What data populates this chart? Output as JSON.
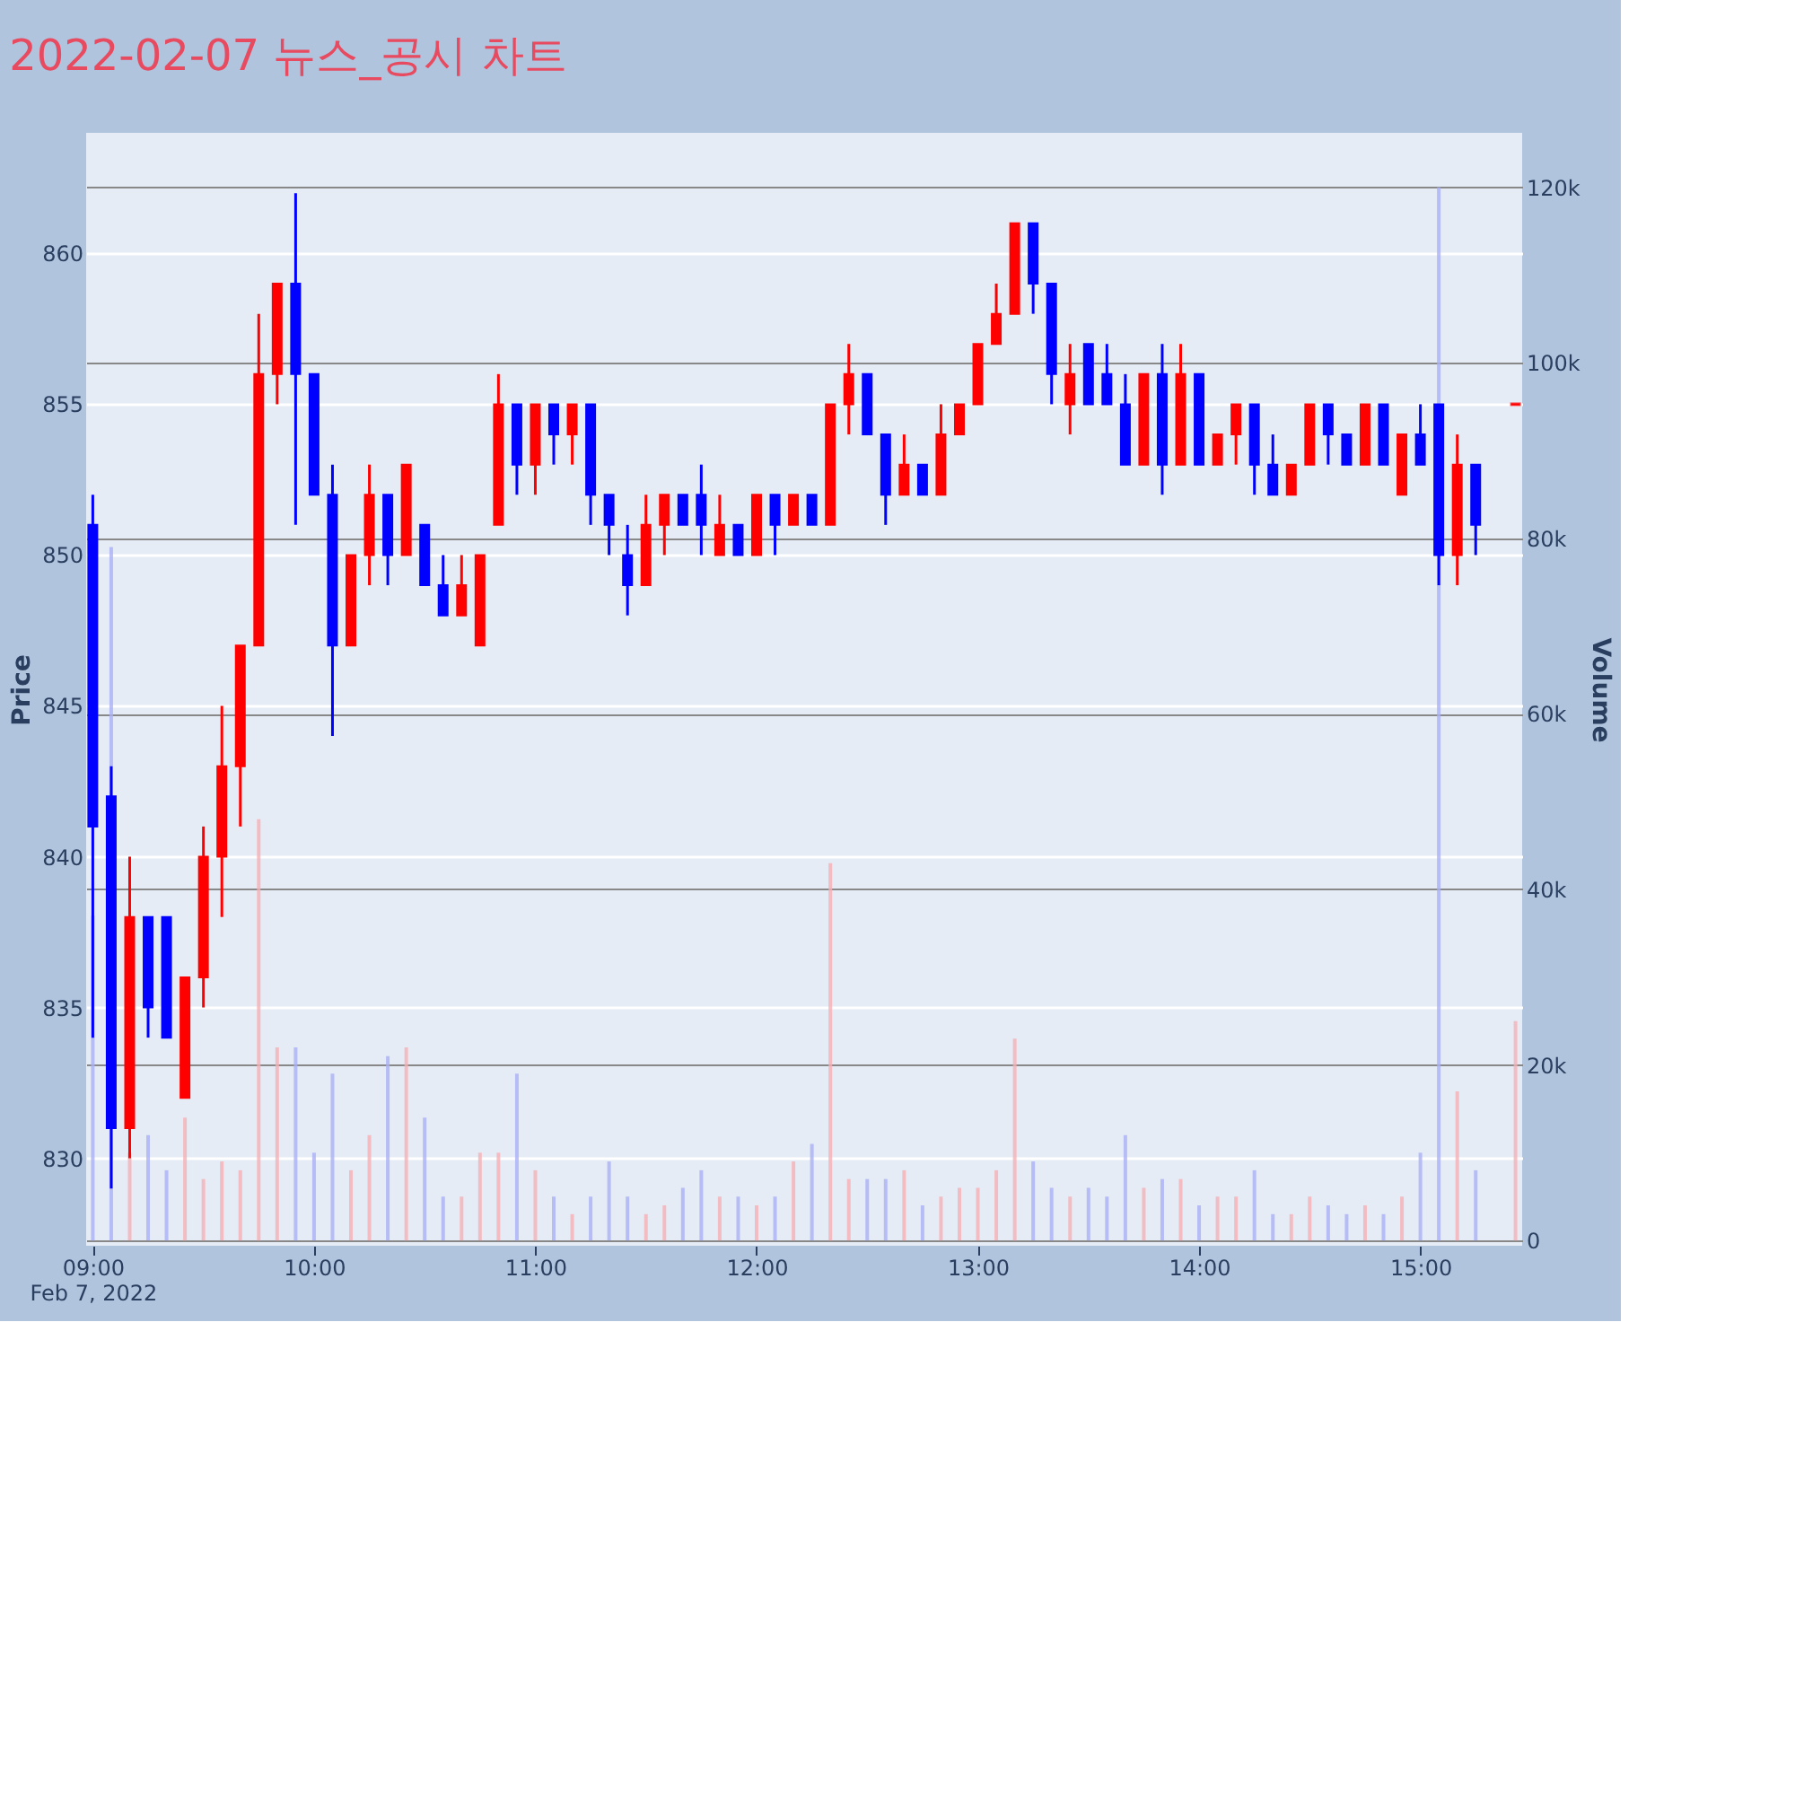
{
  "chart_data": {
    "type": "candlestick",
    "title": "2022-02-07 뉴스_공시 차트",
    "ylabel": "Price",
    "y2label": "Volume",
    "x": [
      9,
      9.0833,
      9.1667,
      9.25,
      9.3333,
      9.4167,
      9.5,
      9.5833,
      9.6667,
      9.75,
      9.8333,
      9.9167,
      10,
      10.0833,
      10.1667,
      10.25,
      10.3333,
      10.4167,
      10.5,
      10.5833,
      10.6667,
      10.75,
      10.8333,
      10.9167,
      11,
      11.0833,
      11.1667,
      11.25,
      11.3333,
      11.4167,
      11.5,
      11.5833,
      11.6667,
      11.75,
      11.8333,
      11.9167,
      12,
      12.0833,
      12.1667,
      12.25,
      12.3333,
      12.4167,
      12.5,
      12.5833,
      12.6667,
      12.75,
      12.8333,
      12.9167,
      13,
      13.0833,
      13.1667,
      13.25,
      13.3333,
      13.4167,
      13.5,
      13.5833,
      13.6667,
      13.75,
      13.8333,
      13.9167,
      14,
      14.0833,
      14.1667,
      14.25,
      14.3333,
      14.4167,
      14.5,
      14.5833,
      14.6667,
      14.75,
      14.8333,
      14.9167,
      15,
      15.0833,
      15.1667,
      15.25,
      15.43
    ],
    "xlim": [
      8.97,
      15.46
    ],
    "xticks": [
      {
        "value": 9,
        "label": "09:00\nFeb 7, 2022"
      },
      {
        "value": 10,
        "label": "10:00"
      },
      {
        "value": 11,
        "label": "11:00"
      },
      {
        "value": 12,
        "label": "12:00"
      },
      {
        "value": 13,
        "label": "13:00"
      },
      {
        "value": 14,
        "label": "14:00"
      },
      {
        "value": 15,
        "label": "15:00"
      }
    ],
    "ylim": [
      827.1,
      864
    ],
    "yticks": [
      830,
      835,
      840,
      845,
      850,
      855,
      860
    ],
    "y2lim": [
      -600,
      126200
    ],
    "y2ticks": [
      {
        "value": 0,
        "label": "0"
      },
      {
        "value": 20000,
        "label": "20k"
      },
      {
        "value": 40000,
        "label": "40k"
      },
      {
        "value": 60000,
        "label": "60k"
      },
      {
        "value": 80000,
        "label": "80k"
      },
      {
        "value": 100000,
        "label": "100k"
      },
      {
        "value": 120000,
        "label": "120k"
      }
    ],
    "grid": "y",
    "series": [
      {
        "ohlc": [
          [
            851,
            852,
            834,
            841
          ],
          [
            842,
            843,
            829,
            831
          ],
          [
            831,
            840,
            830,
            838
          ],
          [
            838,
            838,
            834,
            835
          ],
          [
            838,
            838,
            834,
            834
          ],
          [
            832,
            836,
            832,
            836
          ],
          [
            836,
            841,
            835,
            840
          ],
          [
            840,
            845,
            838,
            843
          ],
          [
            843,
            847,
            841,
            847
          ],
          [
            847,
            858,
            847,
            856
          ],
          [
            856,
            859,
            855,
            859
          ],
          [
            859,
            862,
            851,
            856
          ],
          [
            856,
            856,
            852,
            852
          ],
          [
            852,
            853,
            844,
            847
          ],
          [
            847,
            850,
            847,
            850
          ],
          [
            850,
            853,
            849,
            852
          ],
          [
            852,
            852,
            849,
            850
          ],
          [
            850,
            853,
            850,
            853
          ],
          [
            851,
            851,
            849,
            849
          ],
          [
            849,
            850,
            848,
            848
          ],
          [
            848,
            850,
            848,
            849
          ],
          [
            847,
            850,
            847,
            850
          ],
          [
            851,
            856,
            851,
            855
          ],
          [
            855,
            855,
            852,
            853
          ],
          [
            853,
            855,
            852,
            855
          ],
          [
            855,
            855,
            853,
            854
          ],
          [
            854,
            855,
            853,
            855
          ],
          [
            855,
            855,
            851,
            852
          ],
          [
            852,
            852,
            850,
            851
          ],
          [
            850,
            851,
            848,
            849
          ],
          [
            849,
            852,
            849,
            851
          ],
          [
            851,
            852,
            850,
            852
          ],
          [
            852,
            852,
            851,
            851
          ],
          [
            852,
            853,
            850,
            851
          ],
          [
            850,
            852,
            850,
            851
          ],
          [
            851,
            851,
            850,
            850
          ],
          [
            850,
            852,
            850,
            852
          ],
          [
            852,
            852,
            850,
            851
          ],
          [
            851,
            852,
            851,
            852
          ],
          [
            852,
            852,
            851,
            851
          ],
          [
            851,
            855,
            851,
            855
          ],
          [
            855,
            857,
            854,
            856
          ],
          [
            856,
            856,
            854,
            854
          ],
          [
            854,
            854,
            851,
            852
          ],
          [
            852,
            854,
            852,
            853
          ],
          [
            853,
            853,
            852,
            852
          ],
          [
            852,
            855,
            852,
            854
          ],
          [
            854,
            855,
            854,
            855
          ],
          [
            855,
            857,
            855,
            857
          ],
          [
            857,
            859,
            857,
            858
          ],
          [
            858,
            861,
            858,
            861
          ],
          [
            861,
            861,
            858,
            859
          ],
          [
            859,
            859,
            855,
            856
          ],
          [
            855,
            857,
            854,
            856
          ],
          [
            857,
            857,
            855,
            855
          ],
          [
            856,
            857,
            855,
            855
          ],
          [
            855,
            856,
            853,
            853
          ],
          [
            853,
            856,
            853,
            856
          ],
          [
            856,
            857,
            852,
            853
          ],
          [
            853,
            857,
            853,
            856
          ],
          [
            856,
            856,
            853,
            853
          ],
          [
            853,
            854,
            853,
            854
          ],
          [
            854,
            855,
            853,
            855
          ],
          [
            855,
            855,
            852,
            853
          ],
          [
            853,
            854,
            852,
            852
          ],
          [
            852,
            853,
            852,
            853
          ],
          [
            853,
            855,
            853,
            855
          ],
          [
            855,
            855,
            853,
            854
          ],
          [
            854,
            854,
            853,
            853
          ],
          [
            853,
            855,
            853,
            855
          ],
          [
            855,
            855,
            853,
            853
          ],
          [
            852,
            854,
            852,
            854
          ],
          [
            854,
            855,
            853,
            853
          ],
          [
            855,
            855,
            849,
            850
          ],
          [
            850,
            854,
            849,
            853
          ],
          [
            853,
            853,
            850,
            851
          ],
          [
            855,
            855,
            855,
            855
          ]
        ],
        "colors": [
          "#0000ff",
          "#0000ff",
          "#ff0000",
          "#0000ff",
          "#0000ff",
          "#ff0000",
          "#ff0000",
          "#ff0000",
          "#ff0000",
          "#ff0000",
          "#ff0000",
          "#0000ff",
          "#0000ff",
          "#0000ff",
          "#ff0000",
          "#ff0000",
          "#0000ff",
          "#ff0000",
          "#0000ff",
          "#0000ff",
          "#ff0000",
          "#ff0000",
          "#ff0000",
          "#0000ff",
          "#ff0000",
          "#0000ff",
          "#ff0000",
          "#0000ff",
          "#0000ff",
          "#0000ff",
          "#ff0000",
          "#ff0000",
          "#0000ff",
          "#0000ff",
          "#ff0000",
          "#0000ff",
          "#ff0000",
          "#0000ff",
          "#ff0000",
          "#0000ff",
          "#ff0000",
          "#ff0000",
          "#0000ff",
          "#0000ff",
          "#ff0000",
          "#0000ff",
          "#ff0000",
          "#ff0000",
          "#ff0000",
          "#ff0000",
          "#ff0000",
          "#0000ff",
          "#0000ff",
          "#ff0000",
          "#0000ff",
          "#0000ff",
          "#0000ff",
          "#ff0000",
          "#0000ff",
          "#ff0000",
          "#0000ff",
          "#ff0000",
          "#ff0000",
          "#0000ff",
          "#0000ff",
          "#ff0000",
          "#ff0000",
          "#0000ff",
          "#0000ff",
          "#ff0000",
          "#0000ff",
          "#ff0000",
          "#0000ff",
          "#0000ff",
          "#ff0000",
          "#0000ff",
          "#ff0000"
        ]
      },
      {
        "type": "bar",
        "axis": "y2",
        "values": [
          37000,
          79000,
          10000,
          12000,
          8000,
          14000,
          7000,
          9000,
          8000,
          48000,
          22000,
          22000,
          10000,
          19000,
          8000,
          12000,
          21000,
          22000,
          14000,
          5000,
          5000,
          10000,
          10000,
          19000,
          8000,
          5000,
          3000,
          5000,
          9000,
          5000,
          3000,
          4000,
          6000,
          8000,
          5000,
          5000,
          4000,
          5000,
          9000,
          11000,
          43000,
          7000,
          7000,
          7000,
          8000,
          4000,
          5000,
          6000,
          6000,
          8000,
          23000,
          9000,
          6000,
          5000,
          6000,
          5000,
          12000,
          6000,
          7000,
          7000,
          4000,
          5000,
          5000,
          8000,
          3000,
          3000,
          5000,
          4000,
          3000,
          4000,
          3000,
          5000,
          10000,
          120000,
          17000,
          8000,
          25000
        ],
        "colors": [
          "#aab0f5",
          "#aab0f5",
          "#f5b0b5",
          "#aab0f5",
          "#aab0f5",
          "#f5b0b5",
          "#f5b0b5",
          "#f5b0b5",
          "#f5b0b5",
          "#f5b0b5",
          "#f5b0b5",
          "#aab0f5",
          "#aab0f5",
          "#aab0f5",
          "#f5b0b5",
          "#f5b0b5",
          "#aab0f5",
          "#f5b0b5",
          "#aab0f5",
          "#aab0f5",
          "#f5b0b5",
          "#f5b0b5",
          "#f5b0b5",
          "#aab0f5",
          "#f5b0b5",
          "#aab0f5",
          "#f5b0b5",
          "#aab0f5",
          "#aab0f5",
          "#aab0f5",
          "#f5b0b5",
          "#f5b0b5",
          "#aab0f5",
          "#aab0f5",
          "#f5b0b5",
          "#aab0f5",
          "#f5b0b5",
          "#aab0f5",
          "#f5b0b5",
          "#aab0f5",
          "#f5b0b5",
          "#f5b0b5",
          "#aab0f5",
          "#aab0f5",
          "#f5b0b5",
          "#aab0f5",
          "#f5b0b5",
          "#f5b0b5",
          "#f5b0b5",
          "#f5b0b5",
          "#f5b0b5",
          "#aab0f5",
          "#aab0f5",
          "#f5b0b5",
          "#aab0f5",
          "#aab0f5",
          "#aab0f5",
          "#f5b0b5",
          "#aab0f5",
          "#f5b0b5",
          "#aab0f5",
          "#f5b0b5",
          "#f5b0b5",
          "#aab0f5",
          "#aab0f5",
          "#f5b0b5",
          "#f5b0b5",
          "#aab0f5",
          "#aab0f5",
          "#f5b0b5",
          "#aab0f5",
          "#f5b0b5",
          "#aab0f5",
          "#aab0f5",
          "#f5b0b5",
          "#aab0f5",
          "#f5b0b5"
        ]
      }
    ]
  }
}
